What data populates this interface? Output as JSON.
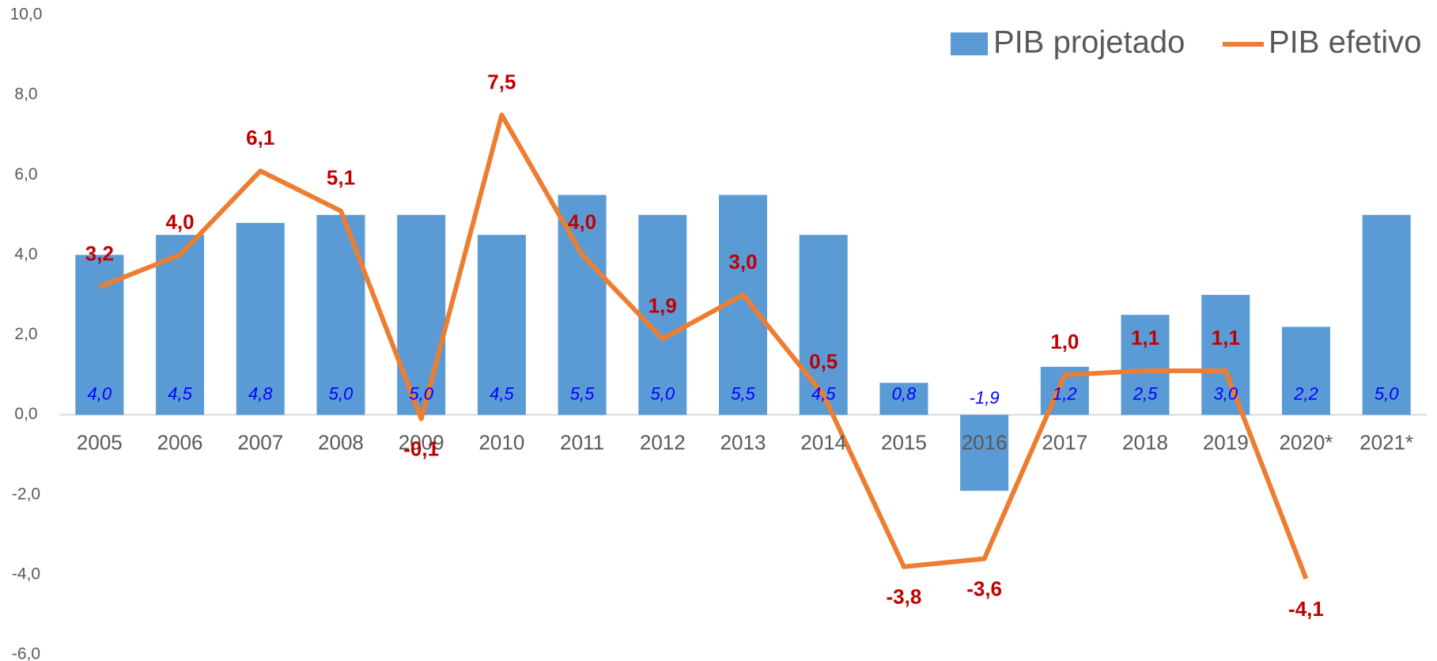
{
  "chart_data": {
    "type": "bar",
    "categories": [
      "2005",
      "2006",
      "2007",
      "2008",
      "2009",
      "2010",
      "2011",
      "2012",
      "2013",
      "2014",
      "2015",
      "2016",
      "2017",
      "2018",
      "2019",
      "2020*",
      "2021*"
    ],
    "series": [
      {
        "name": "PIB projetado",
        "type": "bar",
        "color": "#5b9bd5",
        "values": [
          4.0,
          4.5,
          4.8,
          5.0,
          5.0,
          4.5,
          5.5,
          5.0,
          5.5,
          4.5,
          0.8,
          -1.9,
          1.2,
          2.5,
          3.0,
          2.2,
          5.0
        ],
        "value_labels": [
          "4,0",
          "4,5",
          "4,8",
          "5,0",
          "5,0",
          "4,5",
          "5,5",
          "5,0",
          "5,5",
          "4,5",
          "0,8",
          "-1,9",
          "1,2",
          "2,5",
          "3,0",
          "2,2",
          "5,0"
        ]
      },
      {
        "name": "PIB efetivo",
        "type": "line",
        "color": "#ed7d31",
        "values": [
          3.2,
          4.0,
          6.1,
          5.1,
          -0.1,
          7.5,
          4.0,
          1.9,
          3.0,
          0.5,
          -3.8,
          -3.6,
          1.0,
          1.1,
          1.1,
          -4.1,
          null
        ],
        "value_labels": [
          "3,2",
          "4,0",
          "6,1",
          "5,1",
          "-0,1",
          "7,5",
          "4,0",
          "1,9",
          "3,0",
          "0,5",
          "-3,8",
          "-3,6",
          "1,0",
          "1,1",
          "1,1",
          "-4,1",
          null
        ]
      }
    ],
    "ylim": [
      -6,
      10
    ],
    "yticks": [
      {
        "value": -6,
        "label": "-6,0"
      },
      {
        "value": -4,
        "label": "-4,0"
      },
      {
        "value": -2,
        "label": "-2,0"
      },
      {
        "value": 0,
        "label": "0,0"
      },
      {
        "value": 2,
        "label": "2,0"
      },
      {
        "value": 4,
        "label": "4,0"
      },
      {
        "value": 6,
        "label": "6,0"
      },
      {
        "value": 8,
        "label": "8,0"
      },
      {
        "value": 10,
        "label": "10,0"
      }
    ],
    "grid": false,
    "legend": "top-right"
  }
}
